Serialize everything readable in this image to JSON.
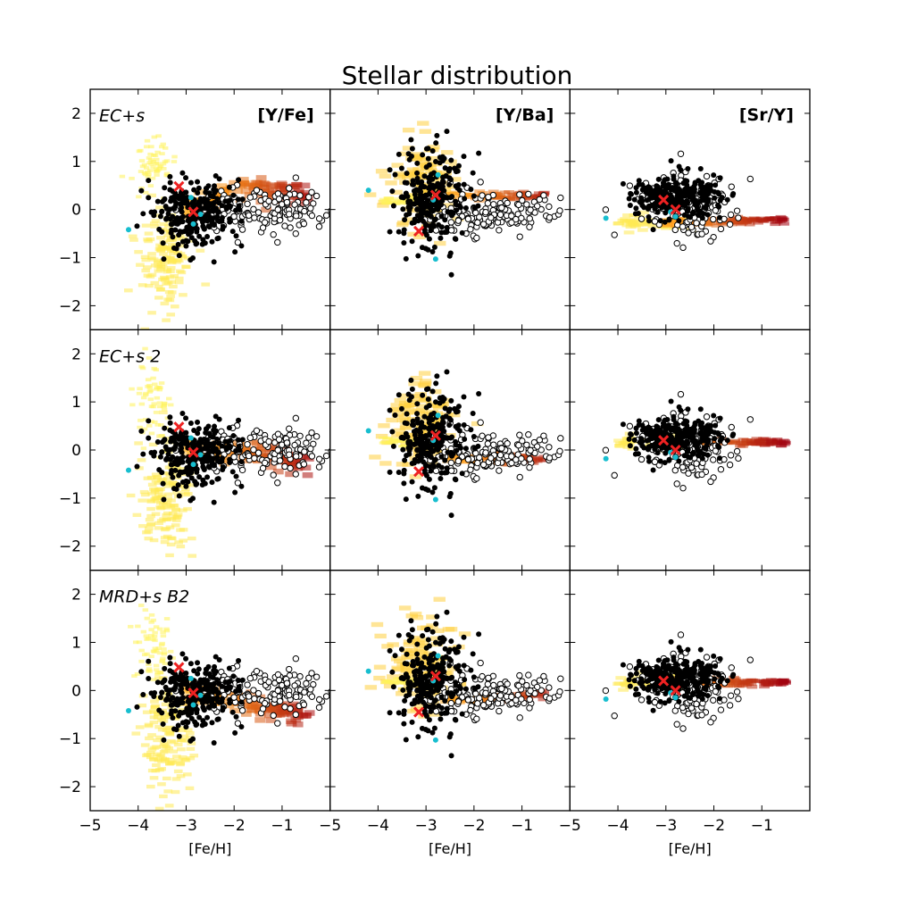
{
  "chart_data": {
    "type": "scatter",
    "title": "Stellar distribution",
    "xlabel": "[Fe/H]",
    "xlim": [
      -5,
      0
    ],
    "ylim": [
      -2.5,
      2.5
    ],
    "xticks": [
      -5,
      -4,
      -3,
      -2,
      -1
    ],
    "yticks": [
      -2,
      -1,
      0,
      1,
      2
    ],
    "tick_labels_x": [
      "−5",
      "−4",
      "−3",
      "−2",
      "−1"
    ],
    "tick_labels_y": [
      "−2",
      "−1",
      "0",
      "1",
      "2"
    ],
    "grid": false,
    "rows": [
      {
        "label": "EC+s"
      },
      {
        "label": "EC+s 2"
      },
      {
        "label": "MRD+s B2"
      }
    ],
    "columns": [
      {
        "label": "[Y/Fe]",
        "ratio": "Y/Fe"
      },
      {
        "label": "[Y/Ba]",
        "ratio": "Y/Ba"
      },
      {
        "label": "[Sr/Y]",
        "ratio": "Sr/Y"
      }
    ],
    "colors": {
      "filled_stars": "#000000",
      "open_stars": "#000000",
      "cyan_stars": "#17becf",
      "red_crosses": "#ee2222",
      "density_low": "#fff25a",
      "density_mid": "#ff9a1a",
      "density_high": "#a00010"
    },
    "observations": {
      "Y/Fe": {
        "filled_center": [
          -2.8,
          -0.1
        ],
        "filled_spread": [
          0.45,
          0.35
        ],
        "open_center": [
          -1.4,
          0.0
        ],
        "open_spread": [
          0.85,
          0.22
        ],
        "cyan": [
          [
            -4.2,
            -0.42
          ],
          [
            -2.7,
            -0.1
          ],
          [
            -2.85,
            -0.3
          ],
          [
            -2.9,
            0.25
          ]
        ],
        "red_x": [
          [
            -3.15,
            0.48
          ],
          [
            -2.85,
            -0.05
          ]
        ]
      },
      "Y/Ba": {
        "filled_center": [
          -2.9,
          0.25
        ],
        "filled_spread": [
          0.35,
          0.5
        ],
        "open_center": [
          -1.6,
          -0.05
        ],
        "open_spread": [
          0.75,
          0.22
        ],
        "cyan": [
          [
            -4.2,
            0.4
          ],
          [
            -2.75,
            0.72
          ],
          [
            -2.85,
            0.2
          ],
          [
            -2.8,
            -1.03
          ]
        ],
        "red_x": [
          [
            -3.15,
            -0.45
          ],
          [
            -2.8,
            0.3
          ]
        ]
      },
      "Sr/Y": {
        "filled_center": [
          -2.8,
          0.25
        ],
        "filled_spread": [
          0.45,
          0.2
        ],
        "open_center": [
          -2.5,
          0.1
        ],
        "open_spread": [
          0.5,
          0.35
        ],
        "cyan": [
          [
            -4.25,
            -0.18
          ],
          [
            -2.9,
            -0.05
          ],
          [
            -2.8,
            -0.15
          ]
        ],
        "red_x": [
          [
            -3.05,
            0.2
          ],
          [
            -2.8,
            0.0
          ]
        ]
      }
    }
  }
}
